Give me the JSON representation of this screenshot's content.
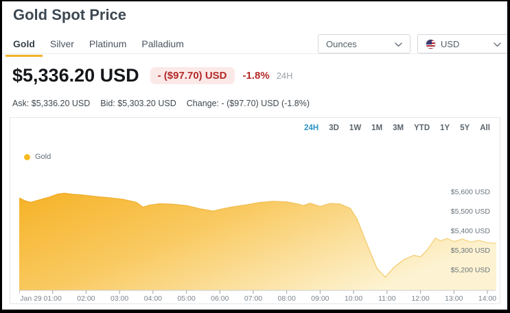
{
  "header": {
    "title": "Gold Spot Price"
  },
  "tabs": {
    "items": [
      {
        "label": "Gold",
        "active": true
      },
      {
        "label": "Silver",
        "active": false
      },
      {
        "label": "Platinum",
        "active": false
      },
      {
        "label": "Palladium",
        "active": false
      }
    ],
    "active_underline_color": "#efb42b"
  },
  "controls": {
    "unit_select": {
      "value": "Ounces"
    },
    "currency_select": {
      "value": "USD",
      "flag": "us-flag"
    }
  },
  "price": {
    "current": "$5,336.20 USD",
    "change_badge": "- ($97.70) USD",
    "change_pct": "-1.8%",
    "period": "24H",
    "ask": "Ask: $5,336.20 USD",
    "bid": "Bid: $5,303.20 USD",
    "change_line": "Change: - ($97.70) USD (-1.8%)",
    "down_color": "#b32a28",
    "badge_bg": "#fbe9e8"
  },
  "chart": {
    "ranges": [
      "24H",
      "3D",
      "1W",
      "1M",
      "3M",
      "YTD",
      "1Y",
      "5Y",
      "All"
    ],
    "active_range": "24H",
    "active_range_color": "#2d93c8",
    "legend_label": "Gold",
    "legend_dot_color": "#f5bb20"
  },
  "chart_data": {
    "type": "area",
    "title": "Gold spot price over 24H (Jan 29, 00:00 - 14:15)",
    "x_unit": "hours since Jan 29 00:00",
    "y_unit": "USD per ounce",
    "x_range": [
      0,
      14.37
    ],
    "y_range": [
      5095,
      5677
    ],
    "grid": false,
    "legend_position": "top-left",
    "series": [
      {
        "name": "Gold",
        "points": [
          [
            0,
            5568
          ],
          [
            0.2,
            5552
          ],
          [
            0.35,
            5545
          ],
          [
            0.6,
            5558
          ],
          [
            0.9,
            5572
          ],
          [
            1.15,
            5588
          ],
          [
            1.35,
            5592
          ],
          [
            1.6,
            5587
          ],
          [
            1.9,
            5583
          ],
          [
            2.3,
            5575
          ],
          [
            2.7,
            5569
          ],
          [
            3.1,
            5561
          ],
          [
            3.5,
            5546
          ],
          [
            3.7,
            5521
          ],
          [
            3.9,
            5531
          ],
          [
            4.2,
            5539
          ],
          [
            4.6,
            5536
          ],
          [
            5.0,
            5529
          ],
          [
            5.4,
            5513
          ],
          [
            5.8,
            5501
          ],
          [
            6.1,
            5513
          ],
          [
            6.4,
            5523
          ],
          [
            6.8,
            5533
          ],
          [
            7.2,
            5545
          ],
          [
            7.6,
            5551
          ],
          [
            8.0,
            5548
          ],
          [
            8.3,
            5538
          ],
          [
            8.5,
            5529
          ],
          [
            8.7,
            5541
          ],
          [
            9.0,
            5525
          ],
          [
            9.3,
            5540
          ],
          [
            9.6,
            5537
          ],
          [
            9.9,
            5515
          ],
          [
            10.1,
            5462
          ],
          [
            10.4,
            5332
          ],
          [
            10.7,
            5207
          ],
          [
            10.95,
            5163
          ],
          [
            11.2,
            5212
          ],
          [
            11.5,
            5252
          ],
          [
            11.8,
            5274
          ],
          [
            12.0,
            5267
          ],
          [
            12.2,
            5302
          ],
          [
            12.45,
            5363
          ],
          [
            12.6,
            5349
          ],
          [
            12.8,
            5361
          ],
          [
            13.0,
            5345
          ],
          [
            13.25,
            5358
          ],
          [
            13.5,
            5343
          ],
          [
            13.75,
            5351
          ],
          [
            14.0,
            5339
          ],
          [
            14.27,
            5336
          ]
        ]
      }
    ],
    "x_ticks": [
      {
        "t": 0,
        "label": "Jan 29"
      },
      {
        "t": 1,
        "label": "01:00"
      },
      {
        "t": 2,
        "label": "02:00"
      },
      {
        "t": 3,
        "label": "03:00"
      },
      {
        "t": 4,
        "label": "04:00"
      },
      {
        "t": 5,
        "label": "05:00"
      },
      {
        "t": 6,
        "label": "06:00"
      },
      {
        "t": 7,
        "label": "07:00"
      },
      {
        "t": 8,
        "label": "08:00"
      },
      {
        "t": 9,
        "label": "09:00"
      },
      {
        "t": 10,
        "label": "10:00"
      },
      {
        "t": 11,
        "label": "11:00"
      },
      {
        "t": 12,
        "label": "12:00"
      },
      {
        "t": 13,
        "label": "13:00"
      },
      {
        "t": 14,
        "label": "14:00"
      }
    ],
    "y_ticks": [
      {
        "value": 5600,
        "label": "$5,600 USD"
      },
      {
        "value": 5500,
        "label": "$5,500 USD"
      },
      {
        "value": 5400,
        "label": "$5,400 USD"
      },
      {
        "value": 5300,
        "label": "$5,300 USD"
      },
      {
        "value": 5200,
        "label": "$5,200 USD"
      }
    ],
    "colors": {
      "fill_start": "#f6b227",
      "fill_mid": "#f9ca62",
      "fill_end": "#fdf3d2",
      "line_start": "#eea71c",
      "line_end": "#f6d98f",
      "axis_line": "#c9ced3",
      "tick_mark": "#9aa2a9",
      "x_label": "#7b848c",
      "y_label": "#68727b"
    }
  }
}
